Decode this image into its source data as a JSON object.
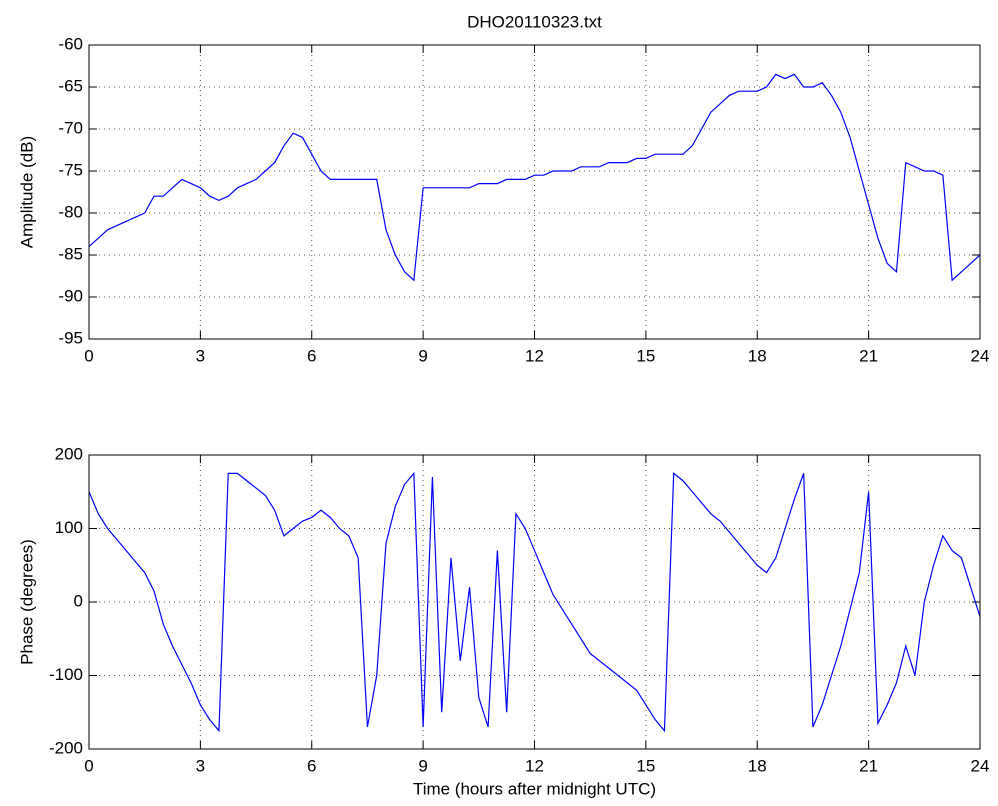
{
  "chart_data": [
    {
      "type": "line",
      "title": "DHO20110323.txt",
      "ylabel": "Amplitude (dB)",
      "x": [
        0,
        0.25,
        0.5,
        0.75,
        1,
        1.25,
        1.5,
        1.75,
        2,
        2.25,
        2.5,
        2.75,
        3,
        3.25,
        3.5,
        3.75,
        4,
        4.25,
        4.5,
        4.75,
        5,
        5.25,
        5.5,
        5.75,
        6,
        6.25,
        6.5,
        6.75,
        7,
        7.25,
        7.5,
        7.75,
        8,
        8.25,
        8.5,
        8.75,
        9,
        9.25,
        9.5,
        9.75,
        10,
        10.25,
        10.5,
        10.75,
        11,
        11.25,
        11.5,
        11.75,
        12,
        12.25,
        12.5,
        12.75,
        13,
        13.25,
        13.5,
        13.75,
        14,
        14.25,
        14.5,
        14.75,
        15,
        15.25,
        15.5,
        15.75,
        16,
        16.25,
        16.5,
        16.75,
        17,
        17.25,
        17.5,
        17.75,
        18,
        18.25,
        18.5,
        18.75,
        19,
        19.25,
        19.5,
        19.75,
        20,
        20.25,
        20.5,
        20.75,
        21,
        21.25,
        21.5,
        21.75,
        22,
        22.25,
        22.5,
        22.75,
        23,
        23.25,
        23.5,
        23.75,
        24
      ],
      "values": [
        -84,
        -83,
        -82,
        -81.5,
        -81,
        -80.5,
        -80,
        -78,
        -78,
        -77,
        -76,
        -76.5,
        -77,
        -78,
        -78.5,
        -78,
        -77,
        -76.5,
        -76,
        -75,
        -74,
        -72,
        -70.5,
        -71,
        -73,
        -75,
        -76,
        -76,
        -76,
        -76,
        -76,
        -76,
        -82,
        -85,
        -87,
        -88,
        -77,
        -77,
        -77,
        -77,
        -77,
        -77,
        -76.5,
        -76.5,
        -76.5,
        -76,
        -76,
        -76,
        -75.5,
        -75.5,
        -75,
        -75,
        -75,
        -74.5,
        -74.5,
        -74.5,
        -74,
        -74,
        -74,
        -73.5,
        -73.5,
        -73,
        -73,
        -73,
        -73,
        -72,
        -70,
        -68,
        -67,
        -66,
        -65.5,
        -65.5,
        -65.5,
        -65,
        -63.5,
        -64,
        -63.5,
        -65,
        -65,
        -64.5,
        -66,
        -68,
        -71,
        -75,
        -79,
        -83,
        -86,
        -87,
        -74,
        -74.5,
        -75,
        -75,
        -75.5,
        -88,
        -87,
        -86,
        -85
      ],
      "color": "#0000ff",
      "xlim": [
        0,
        24
      ],
      "xticks": [
        0,
        3,
        6,
        9,
        12,
        15,
        18,
        21,
        24
      ],
      "ylim": [
        -95,
        -60
      ],
      "yticks": [
        -95,
        -90,
        -85,
        -80,
        -75,
        -70,
        -65,
        -60
      ],
      "grid": true
    },
    {
      "type": "line",
      "ylabel": "Phase (degrees)",
      "xlabel": "Time (hours after midnight UTC)",
      "x": [
        0,
        0.25,
        0.5,
        0.75,
        1,
        1.25,
        1.5,
        1.75,
        2,
        2.25,
        2.5,
        2.75,
        3,
        3.25,
        3.5,
        3.75,
        4,
        4.25,
        4.5,
        4.75,
        5,
        5.25,
        5.5,
        5.75,
        6,
        6.25,
        6.5,
        6.75,
        7,
        7.25,
        7.5,
        7.75,
        8,
        8.25,
        8.5,
        8.75,
        9,
        9.25,
        9.5,
        9.75,
        10,
        10.25,
        10.5,
        10.75,
        11,
        11.25,
        11.5,
        11.75,
        12,
        12.25,
        12.5,
        12.75,
        13,
        13.25,
        13.5,
        13.75,
        14,
        14.25,
        14.5,
        14.75,
        15,
        15.25,
        15.5,
        15.75,
        16,
        16.25,
        16.5,
        16.75,
        17,
        17.25,
        17.5,
        17.75,
        18,
        18.25,
        18.5,
        18.75,
        19,
        19.25,
        19.5,
        19.75,
        20,
        20.25,
        20.5,
        20.75,
        21,
        21.25,
        21.5,
        21.75,
        22,
        22.25,
        22.5,
        22.75,
        23,
        23.25,
        23.5,
        23.75,
        24
      ],
      "values": [
        150,
        120,
        100,
        85,
        70,
        55,
        40,
        15,
        -30,
        -60,
        -85,
        -110,
        -140,
        -160,
        -175,
        175,
        175,
        165,
        155,
        145,
        125,
        90,
        100,
        110,
        115,
        125,
        115,
        100,
        90,
        60,
        -170,
        -100,
        80,
        130,
        160,
        175,
        -170,
        170,
        -150,
        60,
        -80,
        20,
        -130,
        -170,
        70,
        -150,
        120,
        100,
        70,
        40,
        10,
        -10,
        -30,
        -50,
        -70,
        -80,
        -90,
        -100,
        -110,
        -120,
        -140,
        -160,
        -175,
        175,
        165,
        150,
        135,
        120,
        110,
        95,
        80,
        65,
        50,
        40,
        60,
        100,
        140,
        175,
        -170,
        -140,
        -100,
        -60,
        -10,
        40,
        150,
        -165,
        -140,
        -110,
        -60,
        -100,
        0,
        50,
        90,
        70,
        60,
        20,
        -20
      ],
      "color": "#0000ff",
      "xlim": [
        0,
        24
      ],
      "xticks": [
        0,
        3,
        6,
        9,
        12,
        15,
        18,
        21,
        24
      ],
      "ylim": [
        -200,
        200
      ],
      "yticks": [
        -200,
        -100,
        0,
        100,
        200
      ],
      "grid": true
    }
  ]
}
